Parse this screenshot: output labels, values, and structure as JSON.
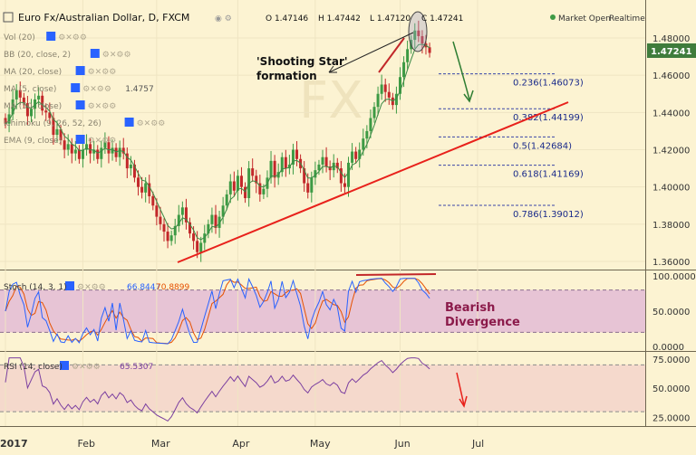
{
  "header": {
    "title": "Euro Fx/Australian Dollar, D, FXCM",
    "ohlc": {
      "o": "O 1.47146",
      "h": "H 1.47442",
      "l": "L 1.47120",
      "c": "C 1.47241"
    },
    "status": "Market Open",
    "mode": "Realtime"
  },
  "indicators": [
    {
      "label": "Vol (20)",
      "value": ""
    },
    {
      "label": "BB (20, close, 2)",
      "value": ""
    },
    {
      "label": "MA (20, close)",
      "value": ""
    },
    {
      "label": "MA (5, close)",
      "value": "1.4757"
    },
    {
      "label": "MA (50, close)",
      "value": ""
    },
    {
      "label": "Ichimoku (9, 26, 52, 26)",
      "value": ""
    },
    {
      "label": "EMA (9, close)",
      "value": ""
    }
  ],
  "colors": {
    "accent": "#2962ff",
    "bull": "#3d9a44",
    "bear": "#c2282a",
    "trend": "#e8211b"
  },
  "chart_data": [
    {
      "type": "candlestick",
      "title": "Euro Fx/Australian Dollar, D, FXCM",
      "ylim": [
        1.355,
        1.492
      ],
      "yticks": [
        "1.48000",
        "1.46000",
        "1.44000",
        "1.42000",
        "1.40000",
        "1.38000",
        "1.36000"
      ],
      "last_price": "1.47241",
      "fib_levels": [
        {
          "value": 1.46073,
          "label": "0.236(1.46073)"
        },
        {
          "value": 1.44199,
          "label": "0.382(1.44199)"
        },
        {
          "value": 1.42684,
          "label": "0.5(1.42684)"
        },
        {
          "value": 1.41169,
          "label": "0.618(1.41169)"
        },
        {
          "value": 1.39012,
          "label": "0.786(1.39012)"
        }
      ],
      "annotations": [
        "'Shooting Star'",
        "formation"
      ],
      "closes": [
        1.434,
        1.439,
        1.447,
        1.452,
        1.448,
        1.445,
        1.438,
        1.442,
        1.447,
        1.449,
        1.441,
        1.44,
        1.437,
        1.428,
        1.431,
        1.425,
        1.42,
        1.423,
        1.418,
        1.42,
        1.415,
        1.42,
        1.423,
        1.418,
        1.42,
        1.415,
        1.421,
        1.424,
        1.418,
        1.421,
        1.416,
        1.421,
        1.418,
        1.41,
        1.412,
        1.405,
        1.4,
        1.397,
        1.402,
        1.395,
        1.39,
        1.384,
        1.38,
        1.376,
        1.371,
        1.374,
        1.379,
        1.385,
        1.389,
        1.381,
        1.375,
        1.371,
        1.365,
        1.37,
        1.375,
        1.38,
        1.385,
        1.378,
        1.384,
        1.39,
        1.396,
        1.403,
        1.398,
        1.406,
        1.4,
        1.394,
        1.41,
        1.406,
        1.402,
        1.396,
        1.399,
        1.405,
        1.414,
        1.405,
        1.408,
        1.416,
        1.41,
        1.412,
        1.42,
        1.415,
        1.41,
        1.402,
        1.397,
        1.405,
        1.409,
        1.412,
        1.416,
        1.411,
        1.409,
        1.413,
        1.41,
        1.402,
        1.4,
        1.413,
        1.419,
        1.415,
        1.42,
        1.426,
        1.43,
        1.437,
        1.443,
        1.45,
        1.455,
        1.451,
        1.448,
        1.444,
        1.45,
        1.459,
        1.467,
        1.474,
        1.479,
        1.484,
        1.481,
        1.477,
        1.475,
        1.472
      ],
      "ma_mode": "smoothed"
    },
    {
      "type": "line",
      "title": "Stoch (14, 3, 1)",
      "values_label": [
        "66.8447",
        "70.8899"
      ],
      "ylim": [
        0,
        100
      ],
      "yticks": [
        "100.0000",
        "50.0000",
        "0.0000"
      ],
      "band": [
        20,
        80
      ],
      "annotation": [
        "Bearish",
        "Divergence"
      ]
    },
    {
      "type": "line",
      "title": "RSI (14, close)",
      "value_label": "65.5307",
      "ylim": [
        20,
        78
      ],
      "yticks": [
        "75.0000",
        "50.0000",
        "25.0000"
      ],
      "band": [
        30,
        70
      ]
    }
  ],
  "x_axis": {
    "labels": [
      {
        "text": "2017",
        "bold": true,
        "t": 0
      },
      {
        "text": "Feb",
        "bold": false,
        "t": 21
      },
      {
        "text": "Mar",
        "bold": false,
        "t": 41
      },
      {
        "text": "Apr",
        "bold": false,
        "t": 63
      },
      {
        "text": "May",
        "bold": false,
        "t": 84
      },
      {
        "text": "Jun",
        "bold": false,
        "t": 107
      },
      {
        "text": "Jul",
        "bold": false,
        "t": 128
      }
    ]
  }
}
